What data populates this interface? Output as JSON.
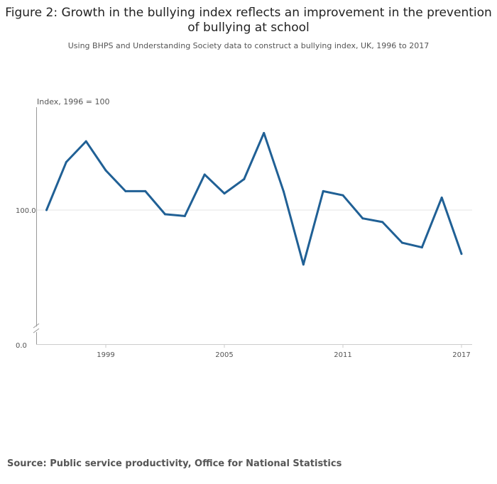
{
  "chart_data": {
    "type": "line",
    "title": "Figure 2: Growth in the bullying index reflects an improvement in the prevention of bullying at school",
    "subtitle": "Using BHPS and Understanding Society data to construct a bullying index, UK, 1996 to 2017",
    "ylabel": "Index, 1996 = 100",
    "xlabel": "",
    "x": [
      1996,
      1997,
      1998,
      1999,
      2000,
      2001,
      2002,
      2003,
      2004,
      2005,
      2006,
      2007,
      2008,
      2009,
      2010,
      2011,
      2012,
      2013,
      2014,
      2015,
      2016,
      2017
    ],
    "series": [
      {
        "values": [
          100,
          110.4,
          114.9,
          108.6,
          104.1,
          104.1,
          99.1,
          98.7,
          107.7,
          103.6,
          106.7,
          116.7,
          104.0,
          88.2,
          104.1,
          103.2,
          98.2,
          97.4,
          92.9,
          91.9,
          102.7,
          90.5
        ],
        "color": "#206095"
      }
    ],
    "x_ticks": [
      "1999",
      "2005",
      "2011",
      "2017"
    ],
    "y_ticks": [
      "100.0",
      "0.0"
    ],
    "y_axis_broken": true,
    "grid": "horizontal at 100",
    "legend": "none"
  },
  "source": "Source: Public service productivity, Office for National Statistics"
}
